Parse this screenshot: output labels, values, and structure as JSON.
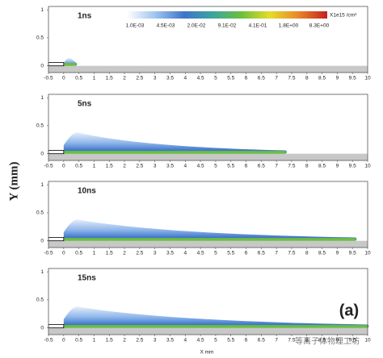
{
  "chart_data": [
    {
      "type": "field",
      "title": "1ns",
      "front": 0.4,
      "xlim": [
        -0.5,
        10
      ],
      "ylim": [
        -0.12,
        1.06
      ],
      "xticks": [
        -0.5,
        0,
        0.5,
        1,
        1.5,
        2,
        2.5,
        3,
        3.5,
        4,
        4.5,
        5,
        5.5,
        6,
        6.5,
        7,
        7.5,
        8,
        8.5,
        9,
        9.5,
        10
      ],
      "yticks": [
        0,
        0.5,
        1
      ]
    },
    {
      "type": "field",
      "title": "5ns",
      "front": 7.3,
      "xlim": [
        -0.5,
        10
      ],
      "ylim": [
        -0.12,
        1.06
      ],
      "xticks": [
        -0.5,
        0,
        0.5,
        1,
        1.5,
        2,
        2.5,
        3,
        3.5,
        4,
        4.5,
        5,
        5.5,
        6,
        6.5,
        7,
        7.5,
        8,
        8.5,
        9,
        9.5,
        10
      ],
      "yticks": [
        0,
        0.5,
        1
      ]
    },
    {
      "type": "field",
      "title": "10ns",
      "front": 9.6,
      "xlim": [
        -0.5,
        10
      ],
      "ylim": [
        -0.12,
        1.06
      ],
      "xticks": [
        -0.5,
        0,
        0.5,
        1,
        1.5,
        2,
        2.5,
        3,
        3.5,
        4,
        4.5,
        5,
        5.5,
        6,
        6.5,
        7,
        7.5,
        8,
        8.5,
        9,
        9.5,
        10
      ],
      "yticks": [
        0,
        0.5,
        1
      ]
    },
    {
      "type": "field",
      "title": "15ns",
      "front": 10,
      "xlim": [
        -0.5,
        10
      ],
      "ylim": [
        -0.12,
        1.06
      ],
      "xticks": [
        -0.5,
        0,
        0.5,
        1,
        1.5,
        2,
        2.5,
        3,
        3.5,
        4,
        4.5,
        5,
        5.5,
        6,
        6.5,
        7,
        7.5,
        8,
        8.5,
        9,
        9.5,
        10
      ],
      "yticks": [
        0,
        0.5,
        1
      ]
    }
  ],
  "colorbar": {
    "labels": [
      "1.0E-03",
      "4.5E-03",
      "2.0E-02",
      "9.1E-02",
      "4.1E-01",
      "1.8E+00",
      "8.3E+00"
    ],
    "unit": "X1e15 /cm³",
    "colors": [
      "#ffffff",
      "#9ec4ef",
      "#3f74c9",
      "#3aa5a0",
      "#6cbf3c",
      "#e5dc2a",
      "#e8862a",
      "#c42020"
    ]
  },
  "ylabel": "Y (mm)",
  "xlabel": "X mm",
  "panel_label": "(a)",
  "watermark": "等离子体物理工坊"
}
